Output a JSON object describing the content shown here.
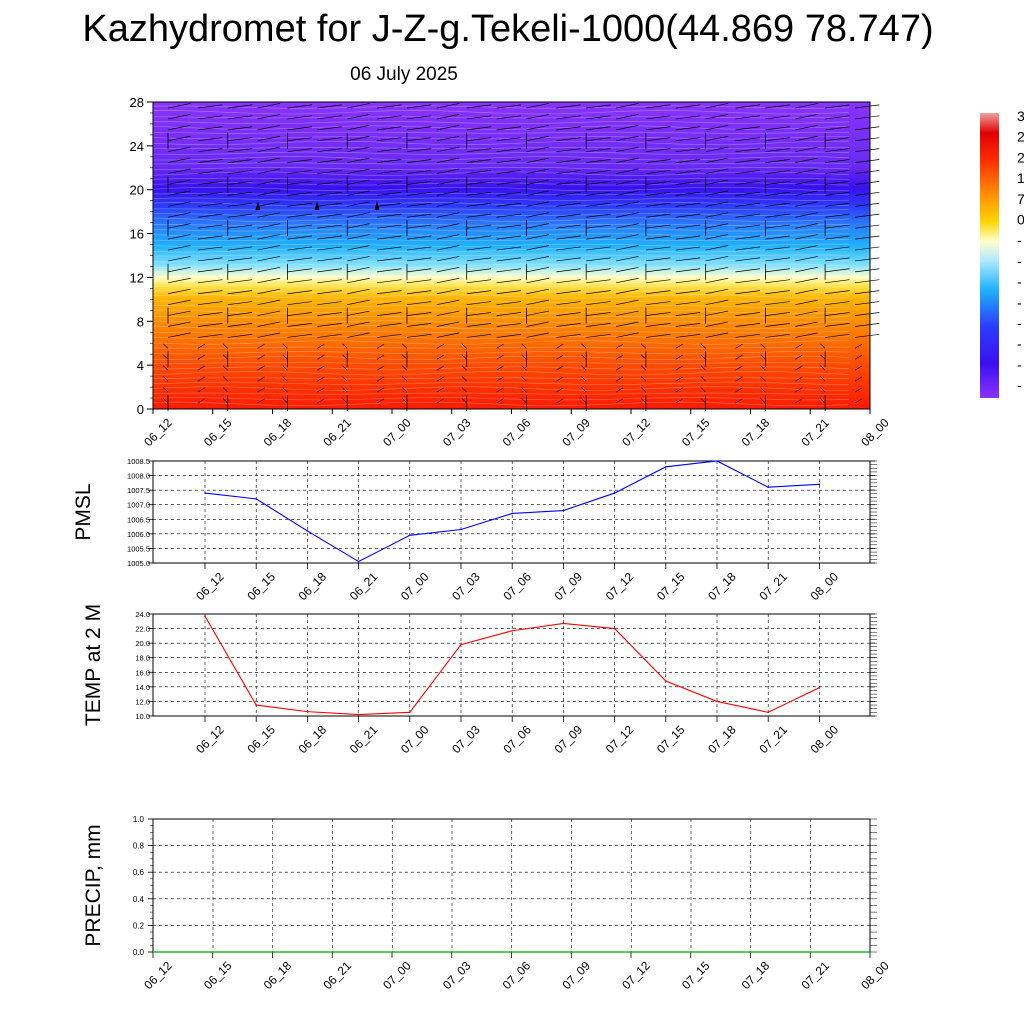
{
  "header": {
    "title": "Kazhydromet for J-Z-g.Tekeli-1000(44.869 78.747)",
    "subtitle": "06 July 2025"
  },
  "chart_data": [
    {
      "type": "heatmap",
      "yticks": [
        "0",
        "4",
        "8",
        "12",
        "16",
        "20",
        "24",
        "28"
      ],
      "ylim": [
        0,
        28
      ],
      "xticks": [
        "06_12",
        "06_15",
        "06_18",
        "06_21",
        "07_00",
        "07_03",
        "07_06",
        "07_09",
        "07_12",
        "07_15",
        "07_18",
        "07_21",
        "08_00"
      ],
      "colorbar_labels": [
        "3",
        "2",
        "2",
        "1",
        "7",
        "0",
        "-",
        "-",
        "-",
        "-",
        "-",
        "-",
        "-",
        "-"
      ],
      "colormap": [
        "#ff0000",
        "#ff6600",
        "#ffcc00",
        "#ffffcc",
        "#33ccff",
        "#0066ff",
        "#3300ff",
        "#8833ff"
      ]
    },
    {
      "type": "line",
      "ylabel": "PMSL",
      "ylim": [
        1005.0,
        1008.5
      ],
      "yticks": [
        "1005.0",
        "1005.5",
        "1006.0",
        "1006.5",
        "1007.0",
        "1007.5",
        "1008.0",
        "1008.5"
      ],
      "categories": [
        "06_12",
        "06_15",
        "06_18",
        "06_21",
        "07_00",
        "07_03",
        "07_06",
        "07_09",
        "07_12",
        "07_15",
        "07_18",
        "07_21",
        "08_00"
      ],
      "series": [
        {
          "values": [
            1007.4,
            1007.2,
            1006.1,
            1005.05,
            1005.95,
            1006.15,
            1006.7,
            1006.8,
            1007.4,
            1008.3,
            1008.5,
            1007.6,
            1007.7
          ],
          "color": "#0000ff"
        }
      ],
      "grid": true
    },
    {
      "type": "line",
      "ylabel": "TEMP at 2 M",
      "ylim": [
        10.0,
        24.0
      ],
      "yticks": [
        "10.0",
        "12.0",
        "14.0",
        "16.0",
        "18.0",
        "20.0",
        "22.0",
        "24.0"
      ],
      "categories": [
        "06_12",
        "06_15",
        "06_18",
        "06_21",
        "07_00",
        "07_03",
        "07_06",
        "07_09",
        "07_12",
        "07_15",
        "07_18",
        "07_21",
        "08_00"
      ],
      "series": [
        {
          "values": [
            23.7,
            11.5,
            10.6,
            10.2,
            10.5,
            19.8,
            21.7,
            22.7,
            22.0,
            14.8,
            12.0,
            10.5,
            13.9
          ],
          "color": "#ff0000"
        }
      ],
      "grid": true
    },
    {
      "type": "line",
      "ylabel": "PRECIP, mm",
      "ylim": [
        0.0,
        1.0
      ],
      "yticks": [
        "0.0",
        "0.2",
        "0.4",
        "0.6",
        "0.8",
        "1.0"
      ],
      "xticks": [
        "06_12",
        "06_15",
        "06_18",
        "06_21",
        "07_00",
        "07_03",
        "07_06",
        "07_09",
        "07_12",
        "07_15",
        "07_18",
        "07_21",
        "08_00"
      ],
      "series": [
        {
          "values": [
            0,
            0,
            0,
            0,
            0,
            0,
            0,
            0,
            0,
            0,
            0,
            0,
            0
          ],
          "color": "#00aa00"
        }
      ],
      "grid": true
    }
  ]
}
